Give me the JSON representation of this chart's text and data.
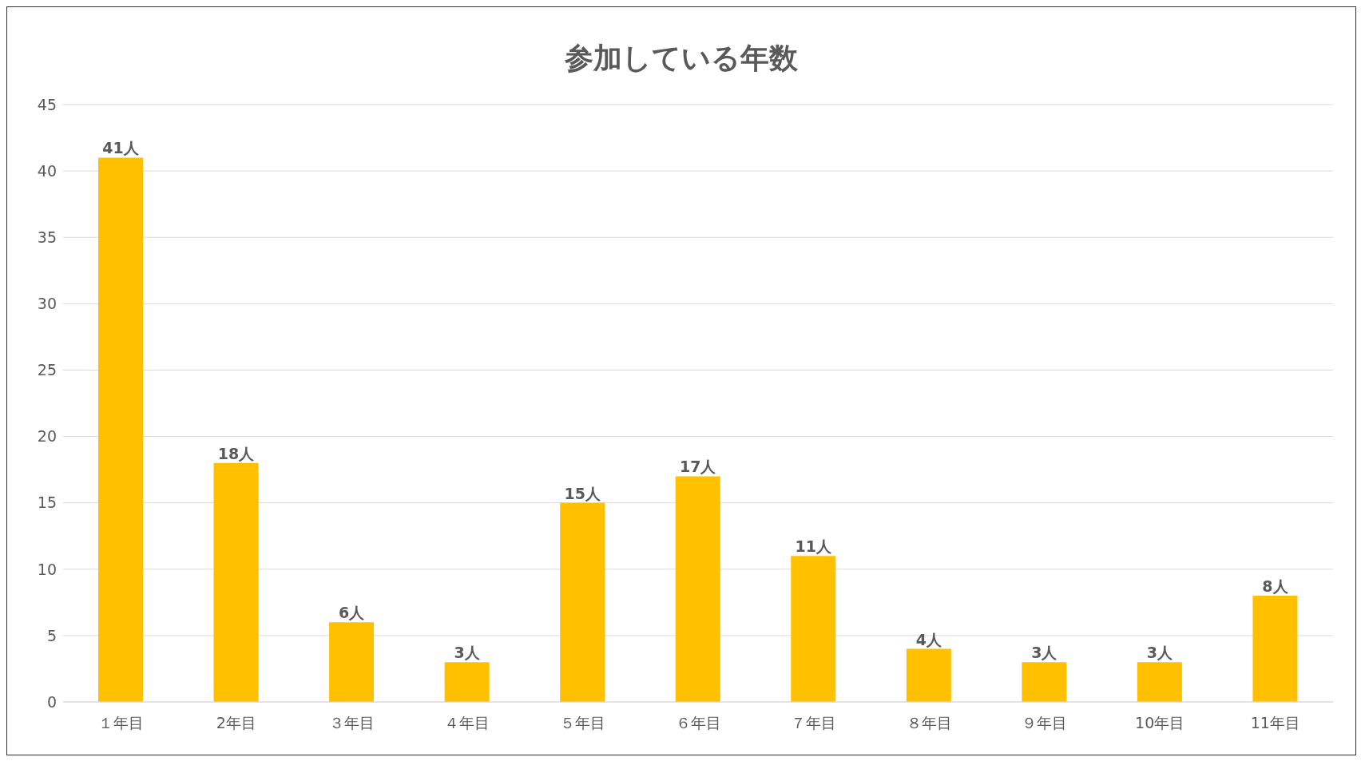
{
  "chart_data": {
    "type": "bar",
    "title": "参加している年数",
    "categories": [
      "１年目",
      "2年目",
      "３年目",
      "４年目",
      "５年目",
      "６年目",
      "７年目",
      "８年目",
      "９年目",
      "10年目",
      "11年目"
    ],
    "values": [
      41,
      18,
      6,
      3,
      15,
      17,
      11,
      4,
      3,
      3,
      8
    ],
    "value_labels": [
      "41人",
      "18人",
      "6人",
      "3人",
      "15人",
      "17人",
      "11人",
      "4人",
      "3人",
      "3人",
      "8人"
    ],
    "color": "#ffc000",
    "ylim": [
      0,
      45
    ],
    "yticks": [
      0,
      5,
      10,
      15,
      20,
      25,
      30,
      35,
      40,
      45
    ],
    "grid": "y"
  }
}
